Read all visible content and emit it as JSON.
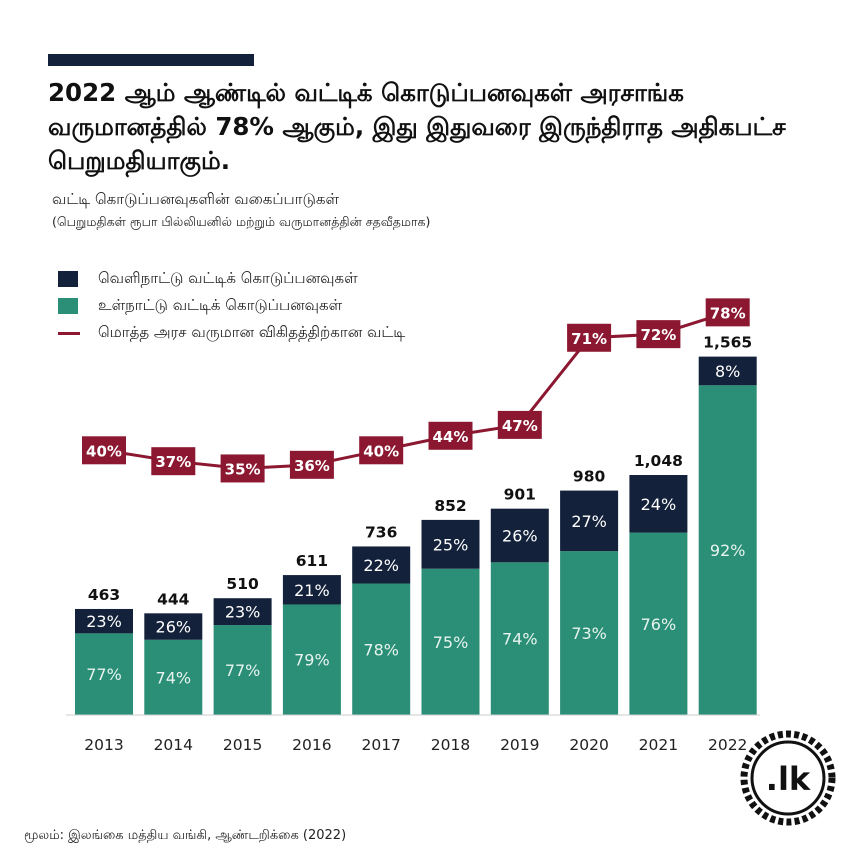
{
  "header": {
    "title": "2022 ஆம் ஆண்டில் வட்டிக் கொடுப்பனவுகள் அரசாங்க வருமானத்தில் 78% ஆகும், இது இதுவரை இருந்திராத அதிகபட்ச பெறுமதியாகும்.",
    "subtitle": "வட்டி கொடுப்பனவுகளின் வகைப்பாடுகள்",
    "subtitle_detail": "(பெறுமதிகள் ரூபா பில்லியனில் மற்றும் வருமானத்தின் சதவீதமாக)"
  },
  "legend": {
    "foreign": "வெளிநாட்டு வட்டிக் கொடுப்பனவுகள்",
    "domestic": "உள்நாட்டு வட்டிக் கொடுப்பனவுகள்",
    "ratio": "மொத்த அரச வருமான விகிதத்திற்கான வட்டி"
  },
  "chart_data": {
    "type": "bar",
    "stacked": true,
    "categories": [
      "2013",
      "2014",
      "2015",
      "2016",
      "2017",
      "2018",
      "2019",
      "2020",
      "2021",
      "2022"
    ],
    "totals": [
      463,
      444,
      510,
      611,
      736,
      852,
      901,
      980,
      1048,
      1565
    ],
    "total_labels": [
      "463",
      "444",
      "510",
      "611",
      "736",
      "852",
      "901",
      "980",
      "1,048",
      "1,565"
    ],
    "series": [
      {
        "name": "உள்நாட்டு வட்டிக் கொடுப்பனவுகள்",
        "share_labels": [
          "77%",
          "74%",
          "77%",
          "79%",
          "78%",
          "75%",
          "74%",
          "73%",
          "76%",
          "92%"
        ],
        "shares": [
          77,
          74,
          77,
          79,
          78,
          75,
          74,
          73,
          76,
          92
        ]
      },
      {
        "name": "வெளிநாட்டு வட்டிக் கொடுப்பனவுகள்",
        "share_labels": [
          "23%",
          "26%",
          "23%",
          "21%",
          "22%",
          "25%",
          "26%",
          "27%",
          "24%",
          "8%"
        ],
        "shares": [
          23,
          26,
          23,
          21,
          22,
          25,
          26,
          27,
          24,
          8
        ]
      }
    ],
    "line": {
      "name": "மொத்த அரச வருமான விகிதத்திற்கான வட்டி",
      "values": [
        40,
        37,
        35,
        36,
        40,
        44,
        47,
        71,
        72,
        78
      ],
      "labels": [
        "40%",
        "37%",
        "35%",
        "36%",
        "40%",
        "44%",
        "47%",
        "71%",
        "72%",
        "78%"
      ]
    },
    "colors": {
      "domestic": "#2a8f76",
      "foreign": "#13213a",
      "line": "#8c1731"
    },
    "grid": false,
    "legend_position": "top-left"
  },
  "source": "மூலம்: இலங்கை மத்திய வங்கி, ஆண்டறிக்கை (2022)",
  "logo": {
    "text": ".lk",
    "icon": "gear-seal-icon"
  }
}
